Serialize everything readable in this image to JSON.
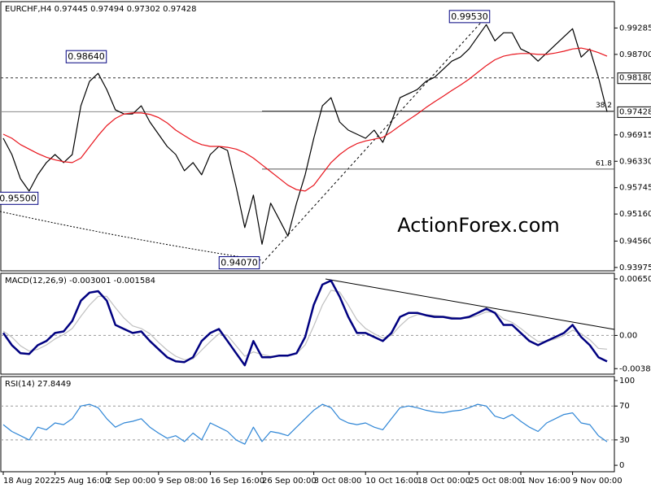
{
  "chart_data": [
    {
      "type": "line",
      "title": "EURCHF,H4 0.97445 0.97494 0.97302 0.97428",
      "watermark": "ActionForex.com",
      "ylim": [
        0.939,
        0.9987
      ],
      "yticks": [
        0.99285,
        {
          "value": 0.987,
          "label": "0.98700"
        },
        0.96915,
        {
          "value": 0.9633,
          "label": "0.96330"
        },
        0.95745,
        {
          "value": 0.9516,
          "label": "0.95160"
        },
        {
          "value": 0.9456,
          "label": "0.94560"
        },
        0.93975
      ],
      "price_labels": [
        {
          "value": 0.9818,
          "label": "0.98180",
          "line": "dashed"
        },
        {
          "value": 0.97428,
          "label": "0.97428",
          "line": "solid"
        }
      ],
      "annotations": [
        {
          "value": 0.9953,
          "label": "0.99530"
        },
        {
          "value": 0.9864,
          "label": "0.98640"
        },
        {
          "value": 0.955,
          "label": "0.95500"
        },
        {
          "value": 0.9407,
          "label": "0.94070"
        }
      ],
      "fib_levels": [
        {
          "value": 0.97444,
          "label": "38.2"
        },
        {
          "value": 0.96156,
          "label": "61.8"
        }
      ],
      "series": [
        {
          "color": "#000000",
          "values": [
            0.9684,
            0.9648,
            0.9594,
            0.9567,
            0.9603,
            0.963,
            0.9648,
            0.963,
            0.9648,
            0.9756,
            0.981,
            0.9828,
            0.9792,
            0.9747,
            0.9738,
            0.9738,
            0.9756,
            0.972,
            0.9693,
            0.9666,
            0.9648,
            0.9612,
            0.963,
            0.9603,
            0.9648,
            0.9666,
            0.9657,
            0.9576,
            0.9486,
            0.9558,
            0.9449,
            0.954,
            0.9504,
            0.9467,
            0.954,
            0.9603,
            0.9684,
            0.9756,
            0.9774,
            0.972,
            0.9702,
            0.9693,
            0.9684,
            0.9702,
            0.9675,
            0.972,
            0.9774,
            0.9783,
            0.9792,
            0.981,
            0.9819,
            0.9837,
            0.9855,
            0.9864,
            0.9882,
            0.9909,
            0.9936,
            0.99,
            0.9918,
            0.9918,
            0.9882,
            0.9873,
            0.9855,
            0.9873,
            0.9891,
            0.9909,
            0.9927,
            0.9864,
            0.9882,
            0.9819,
            0.97428
          ]
        },
        {
          "color": "#e8141c",
          "values": [
            0.9693,
            0.9684,
            0.967,
            0.966,
            0.965,
            0.9642,
            0.9636,
            0.9632,
            0.963,
            0.964,
            0.9665,
            0.969,
            0.9712,
            0.9728,
            0.9738,
            0.974,
            0.974,
            0.9737,
            0.973,
            0.9718,
            0.9702,
            0.969,
            0.9678,
            0.967,
            0.9666,
            0.9666,
            0.9664,
            0.966,
            0.9652,
            0.964,
            0.9625,
            0.961,
            0.9595,
            0.958,
            0.957,
            0.9567,
            0.958,
            0.9605,
            0.963,
            0.9648,
            0.9662,
            0.9672,
            0.9678,
            0.9682,
            0.9686,
            0.9698,
            0.9712,
            0.9725,
            0.9738,
            0.9752,
            0.9765,
            0.9777,
            0.979,
            0.9802,
            0.9815,
            0.983,
            0.9845,
            0.9858,
            0.9866,
            0.987,
            0.9872,
            0.9872,
            0.987,
            0.987,
            0.9873,
            0.9877,
            0.9882,
            0.9884,
            0.988,
            0.9874,
            0.9866
          ]
        }
      ]
    },
    {
      "type": "line",
      "title": "MACD(12,26,9) -0.003001 -0.001584",
      "ylim": [
        -0.00446,
        0.00716
      ],
      "yticks": [
        0.006509,
        {
          "value": 0,
          "label": "0.00"
        },
        -0.003828
      ],
      "dashed_levels": [
        0
      ],
      "series": [
        {
          "color": "#c0c0c0",
          "values": [
            0.0005,
            -0.0002,
            -0.0012,
            -0.0018,
            -0.0016,
            -0.0011,
            -0.0004,
            0.0001,
            0.0008,
            0.0022,
            0.0035,
            0.0045,
            0.0045,
            0.0032,
            0.002,
            0.0011,
            0.0008,
            0.0002,
            -0.0008,
            -0.0017,
            -0.0024,
            -0.0028,
            -0.0027,
            -0.0017,
            -0.0007,
            0.0002,
            0,
            -0.0012,
            -0.0024,
            -0.0019,
            -0.0022,
            -0.0024,
            -0.0024,
            -0.0023,
            -0.0021,
            -0.0011,
            0.0011,
            0.0035,
            0.0052,
            0.005,
            0.0035,
            0.0018,
            0.0008,
            0.0002,
            -0.0003,
            0,
            0.0011,
            0.002,
            0.0024,
            0.0024,
            0.0023,
            0.0022,
            0.0021,
            0.002,
            0.002,
            0.0023,
            0.0027,
            0.0027,
            0.0019,
            0.0015,
            0.0008,
            0,
            -0.0007,
            -0.0007,
            -0.0004,
            0,
            0.0006,
            0.0002,
            -0.0005,
            -0.0015,
            -0.001584
          ]
        },
        {
          "color": "#000080",
          "width": 2.5,
          "values": [
            0.00028,
            -0.00112,
            -0.00205,
            -0.00214,
            -0.00112,
            -0.00065,
            0.00028,
            0.00046,
            0.00167,
            0.004,
            0.00493,
            0.0051,
            0.004,
            0.00121,
            0.00074,
            0.00028,
            0.00046,
            -0.00065,
            -0.00158,
            -0.00251,
            -0.00298,
            -0.00307,
            -0.00251,
            -0.00065,
            0.00028,
            0.00074,
            -0.00065,
            -0.00205,
            -0.00344,
            -0.00065,
            -0.00251,
            -0.00251,
            -0.00232,
            -0.00232,
            -0.00205,
            -0.00019,
            0.00353,
            0.00586,
            0.00632,
            0.00446,
            0.00214,
            0.00028,
            0.00028,
            -0.00019,
            -0.00065,
            0.00028,
            0.00214,
            0.0026,
            0.0026,
            0.00232,
            0.00214,
            0.00214,
            0.00195,
            0.00195,
            0.00214,
            0.0026,
            0.00307,
            0.0026,
            0.00121,
            0.00121,
            0.00028,
            -0.00065,
            -0.00112,
            -0.00065,
            -0.00019,
            0.00028,
            0.00121,
            -0.00019,
            -0.00112,
            -0.00251,
            -0.003001
          ]
        }
      ]
    },
    {
      "type": "line",
      "title": "RSI(14) 27.8449",
      "ylim": [
        -7.6,
        104.8
      ],
      "yticks": [
        100,
        70,
        30,
        0
      ],
      "dashed_levels": [
        70,
        30
      ],
      "categories": [
        "18 Aug 2022",
        null,
        null,
        null,
        null,
        null,
        "25 Aug 16:00",
        null,
        null,
        null,
        null,
        null,
        "2 Sep 00:00",
        null,
        null,
        null,
        null,
        null,
        "9 Sep 08:00",
        null,
        null,
        null,
        null,
        null,
        "16 Sep 16:00",
        null,
        null,
        null,
        null,
        null,
        "26 Sep 00:00",
        null,
        null,
        null,
        null,
        null,
        "3 Oct 08:00",
        null,
        null,
        null,
        null,
        null,
        "10 Oct 16:00",
        null,
        null,
        null,
        null,
        null,
        "18 Oct 00:00",
        null,
        null,
        null,
        null,
        null,
        "25 Oct 08:00",
        null,
        null,
        null,
        null,
        null,
        "1 Nov 16:00",
        null,
        null,
        null,
        null,
        null,
        "9 Nov 00:00",
        null,
        null,
        null,
        null
      ],
      "series": [
        {
          "color": "#2f86d6",
          "values": [
            48,
            40,
            35,
            30,
            45,
            42,
            50,
            48,
            55,
            70,
            72,
            68,
            55,
            45,
            50,
            52,
            55,
            45,
            38,
            32,
            35,
            28,
            38,
            30,
            50,
            45,
            40,
            30,
            25,
            45,
            28,
            40,
            38,
            35,
            45,
            55,
            65,
            72,
            68,
            55,
            50,
            48,
            50,
            45,
            42,
            55,
            68,
            70,
            68,
            65,
            63,
            62,
            64,
            65,
            68,
            72,
            70,
            58,
            55,
            60,
            52,
            45,
            40,
            50,
            55,
            60,
            62,
            50,
            48,
            35,
            27.8449
          ]
        }
      ]
    }
  ]
}
